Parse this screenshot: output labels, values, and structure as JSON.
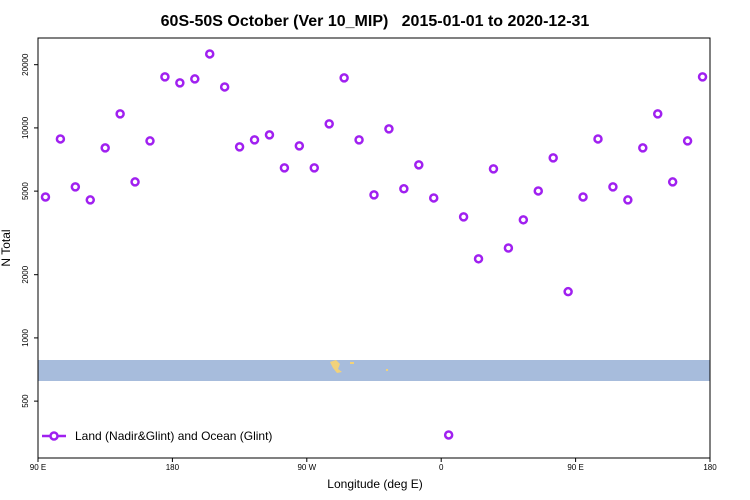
{
  "chart_data": {
    "type": "scatter",
    "title": "60S-50S October (Ver 10_MIP)   2015-01-01 to 2020-12-31",
    "x_label": "Longitude (deg E)",
    "y_label": "N Total",
    "log_y": true,
    "legend_position": "bottom-left",
    "xlim": [
      90,
      540
    ],
    "xticks": [
      {
        "value": 90,
        "label": "90 E"
      },
      180,
      {
        "value": 270,
        "label": "90 W"
      },
      {
        "value": 360,
        "label": "0"
      },
      {
        "value": 450,
        "label": "90 E"
      },
      {
        "value": 540,
        "label": "180"
      }
    ],
    "ylim": [
      268,
      26800
    ],
    "yticks": [
      500,
      1000,
      2000,
      5000,
      10000,
      20000
    ],
    "series": [
      {
        "name": "Land (Nadir&Glint) and Ocean (Glint)",
        "color": "#a020f0",
        "x": [
          95,
          105,
          115,
          125,
          135,
          145,
          155,
          165,
          175,
          185,
          195,
          205,
          215,
          225,
          235,
          245,
          255,
          265,
          275,
          285,
          295,
          305,
          315,
          325,
          335,
          345,
          355,
          365,
          375,
          385,
          395,
          405,
          415,
          425,
          435,
          445,
          455,
          465,
          475,
          485,
          495,
          505,
          515,
          525,
          535
        ],
        "values": [
          4690,
          8860,
          5240,
          4540,
          8030,
          11660,
          5530,
          8670,
          17500,
          16380,
          17110,
          22500,
          15670,
          8120,
          8770,
          9260,
          6450,
          8210,
          6450,
          10450,
          17300,
          8770,
          4800,
          9890,
          5130,
          6670,
          4640,
          345,
          3770,
          2380,
          6380,
          2680,
          3650,
          5010,
          7200,
          1660,
          4690,
          8860,
          5240,
          4540,
          8030,
          11660,
          5530,
          8670,
          17500
        ]
      }
    ]
  }
}
